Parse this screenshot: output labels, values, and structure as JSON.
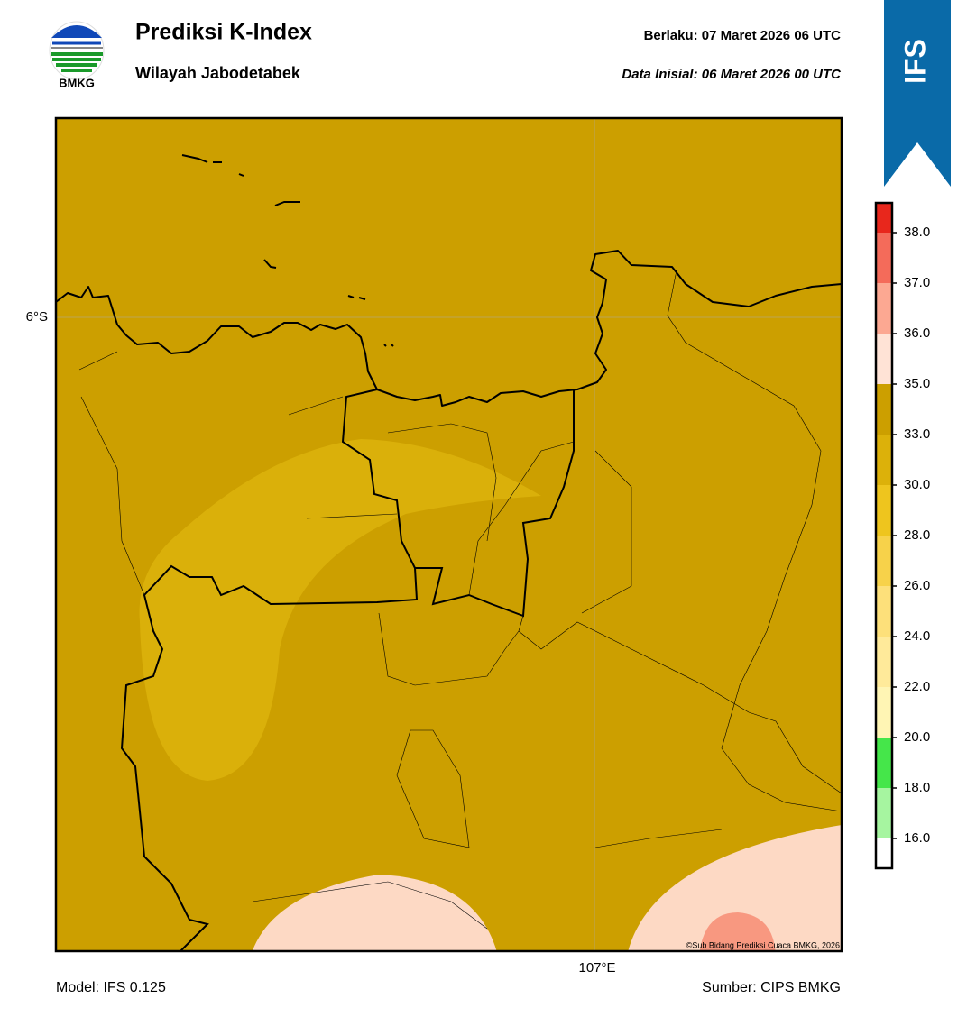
{
  "header": {
    "logo_text": "BMKG",
    "title": "Prediksi K-Index",
    "subtitle": "Wilayah Jabodetabek",
    "valid_label": "Berlaku:  07 Maret 2026 06 UTC",
    "initial_label": "Data Inisial:  06 Maret 2026 00 UTC",
    "banner": "IFS"
  },
  "map": {
    "lat_label": "6°S",
    "lon_label": "107°E",
    "copyright": "©Sub Bidang Prediksi Cuaca BMKG, 2026"
  },
  "colorbar": {
    "ticks": [
      {
        "value": 16,
        "label": "16.0"
      },
      {
        "value": 18,
        "label": "18.0"
      },
      {
        "value": 20,
        "label": "20.0"
      },
      {
        "value": 22,
        "label": "22.0"
      },
      {
        "value": 24,
        "label": "24.0"
      },
      {
        "value": 26,
        "label": "26.0"
      },
      {
        "value": 28,
        "label": "28.0"
      },
      {
        "value": 30,
        "label": "30.0"
      },
      {
        "value": 33,
        "label": "33.0"
      },
      {
        "value": 35,
        "label": "35.0"
      },
      {
        "value": 36,
        "label": "36.0"
      },
      {
        "value": 37,
        "label": "37.0"
      },
      {
        "value": 38,
        "label": "38.0"
      }
    ],
    "colors": [
      "#ffffff",
      "#a6f5a0",
      "#45e64a",
      "#fff5b4",
      "#ffea9a",
      "#fde07a",
      "#f7d24a",
      "#eec51e",
      "#dcb10a",
      "#cc9f00",
      "#ffe3d6",
      "#fca892",
      "#f46b5a",
      "#e8271c"
    ]
  },
  "footer": {
    "model": "Model: IFS 0.125",
    "source": "Sumber: CIPS BMKG"
  }
}
